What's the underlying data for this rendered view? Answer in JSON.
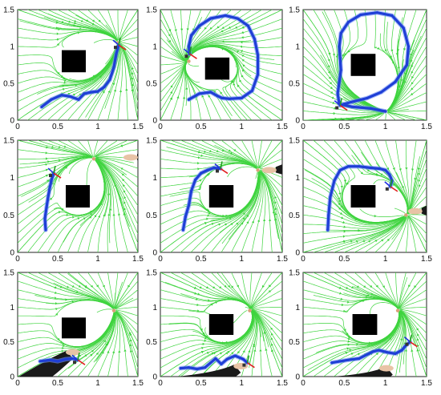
{
  "figure": {
    "x_ticks": [
      "0",
      "0.5",
      "1",
      "1.5"
    ],
    "y_ticks": [
      "0",
      "0.5",
      "1",
      "1.5"
    ]
  },
  "colors": {
    "streamline": "#3ed43e",
    "trajectory": "#1f3fd6",
    "trajectory_glow": "#6f8ff5",
    "obstacle": "#000000",
    "attractor": "#d9a07a",
    "hand": "#e8c3a6",
    "sleeve": "#1a1a1a"
  },
  "chart_data": [
    {
      "type": "line",
      "xlim": [
        0,
        1.5
      ],
      "ylim": [
        0,
        1.5
      ],
      "obstacle": {
        "x": [
          0.55,
          0.85
        ],
        "y": [
          0.65,
          0.95
        ]
      },
      "attractor": [
        1.25,
        1.05
      ],
      "hand": null,
      "series": [
        {
          "x": [
            0.3,
            0.42,
            0.55,
            0.66,
            0.76,
            0.83,
            0.92,
            1.0,
            1.08,
            1.15,
            1.2,
            1.23,
            1.26
          ],
          "y": [
            0.18,
            0.28,
            0.34,
            0.32,
            0.28,
            0.36,
            0.38,
            0.39,
            0.45,
            0.55,
            0.72,
            0.9,
            1.02
          ]
        }
      ]
    },
    {
      "type": "line",
      "xlim": [
        0,
        1.5
      ],
      "ylim": [
        0,
        1.5
      ],
      "obstacle": {
        "x": [
          0.55,
          0.85
        ],
        "y": [
          0.55,
          0.85
        ]
      },
      "attractor": [
        0.35,
        0.8
      ],
      "hand": null,
      "series": [
        {
          "x": [
            0.35,
            0.48,
            0.62,
            0.7,
            0.76,
            0.85,
            1.0,
            1.13,
            1.2,
            1.2,
            1.16,
            1.08,
            0.95,
            0.8,
            0.62,
            0.48,
            0.38,
            0.35,
            0.36
          ],
          "y": [
            0.28,
            0.36,
            0.38,
            0.33,
            0.3,
            0.29,
            0.3,
            0.4,
            0.62,
            0.88,
            1.1,
            1.28,
            1.38,
            1.42,
            1.38,
            1.28,
            1.15,
            1.0,
            0.9
          ]
        }
      ]
    },
    {
      "type": "line",
      "xlim": [
        0,
        1.5
      ],
      "ylim": [
        0,
        1.5
      ],
      "obstacle": {
        "x": [
          0.58,
          0.88
        ],
        "y": [
          0.6,
          0.9
        ]
      },
      "attractor": [
        1.0,
        0.12
      ],
      "hand": null,
      "series": [
        {
          "x": [
            1.0,
            0.82,
            0.6,
            0.44,
            0.42,
            0.44,
            0.46,
            0.45,
            0.44,
            0.46,
            0.55,
            0.7,
            0.9,
            1.08,
            1.22,
            1.28,
            1.26,
            1.12,
            0.95,
            0.78,
            0.6,
            0.5,
            0.45
          ],
          "y": [
            0.12,
            0.16,
            0.18,
            0.22,
            0.36,
            0.52,
            0.68,
            0.84,
            1.0,
            1.18,
            1.33,
            1.43,
            1.46,
            1.42,
            1.25,
            1.0,
            0.75,
            0.52,
            0.38,
            0.3,
            0.25,
            0.22,
            0.2
          ]
        }
      ]
    },
    {
      "type": "line",
      "xlim": [
        0,
        1.5
      ],
      "ylim": [
        0,
        1.5
      ],
      "obstacle": {
        "x": [
          0.6,
          0.9
        ],
        "y": [
          0.6,
          0.9
        ]
      },
      "attractor": [
        0.95,
        1.25
      ],
      "hand": {
        "x": 1.45,
        "y": 1.27
      },
      "series": [
        {
          "x": [
            0.35,
            0.34,
            0.36,
            0.38,
            0.4,
            0.42,
            0.45
          ],
          "y": [
            0.3,
            0.45,
            0.6,
            0.74,
            0.86,
            0.96,
            1.06
          ]
        }
      ]
    },
    {
      "type": "line",
      "xlim": [
        0,
        1.5
      ],
      "ylim": [
        0,
        1.5
      ],
      "obstacle": {
        "x": [
          0.6,
          0.9
        ],
        "y": [
          0.6,
          0.9
        ]
      },
      "attractor": [
        1.2,
        1.1
      ],
      "hand": {
        "x": 1.38,
        "y": 1.1
      },
      "series": [
        {
          "x": [
            0.28,
            0.31,
            0.35,
            0.38,
            0.43,
            0.5,
            0.58,
            0.66,
            0.74
          ],
          "y": [
            0.3,
            0.48,
            0.63,
            0.82,
            0.97,
            1.06,
            1.1,
            1.13,
            1.12
          ]
        }
      ]
    },
    {
      "type": "line",
      "xlim": [
        0,
        1.5
      ],
      "ylim": [
        0,
        1.5
      ],
      "obstacle": {
        "x": [
          0.58,
          0.88
        ],
        "y": [
          0.6,
          0.9
        ]
      },
      "attractor": [
        1.25,
        0.5
      ],
      "hand": {
        "x": 1.4,
        "y": 0.55
      },
      "series": [
        {
          "x": [
            0.3,
            0.31,
            0.33,
            0.38,
            0.45,
            0.55,
            0.68,
            0.82,
            0.93,
            1.0,
            1.05,
            1.08,
            1.06
          ],
          "y": [
            0.3,
            0.5,
            0.74,
            0.96,
            1.1,
            1.15,
            1.15,
            1.13,
            1.12,
            1.1,
            1.04,
            0.96,
            0.88
          ]
        }
      ]
    },
    {
      "type": "line",
      "xlim": [
        0,
        1.5
      ],
      "ylim": [
        0,
        1.5
      ],
      "obstacle": {
        "x": [
          0.55,
          0.85
        ],
        "y": [
          0.55,
          0.85
        ]
      },
      "attractor": [
        1.2,
        0.95
      ],
      "hand": {
        "x": 0.65,
        "y": 0.35
      },
      "series": [
        {
          "x": [
            0.28,
            0.4,
            0.5,
            0.6,
            0.68,
            0.75
          ],
          "y": [
            0.22,
            0.24,
            0.22,
            0.25,
            0.26,
            0.24
          ]
        }
      ]
    },
    {
      "type": "line",
      "xlim": [
        0,
        1.5
      ],
      "ylim": [
        0,
        1.5
      ],
      "obstacle": {
        "x": [
          0.6,
          0.9
        ],
        "y": [
          0.6,
          0.9
        ]
      },
      "attractor": [
        1.1,
        0.95
      ],
      "hand": {
        "x": 0.95,
        "y": 0.15
      },
      "series": [
        {
          "x": [
            0.25,
            0.35,
            0.45,
            0.55,
            0.62,
            0.68,
            0.75,
            0.82,
            0.92,
            1.02,
            1.07
          ],
          "y": [
            0.12,
            0.13,
            0.11,
            0.13,
            0.2,
            0.26,
            0.18,
            0.25,
            0.3,
            0.25,
            0.2
          ]
        }
      ]
    },
    {
      "type": "line",
      "xlim": [
        0,
        1.5
      ],
      "ylim": [
        0,
        1.5
      ],
      "obstacle": {
        "x": [
          0.6,
          0.9
        ],
        "y": [
          0.6,
          0.9
        ]
      },
      "attractor": [
        1.15,
        0.95
      ],
      "hand": {
        "x": 1.05,
        "y": 0.12
      },
      "series": [
        {
          "x": [
            0.35,
            0.45,
            0.55,
            0.68,
            0.78,
            0.85,
            0.92,
            1.02,
            1.12,
            1.2,
            1.25,
            1.3
          ],
          "y": [
            0.2,
            0.22,
            0.24,
            0.26,
            0.32,
            0.36,
            0.38,
            0.35,
            0.33,
            0.38,
            0.45,
            0.5
          ]
        }
      ]
    }
  ]
}
